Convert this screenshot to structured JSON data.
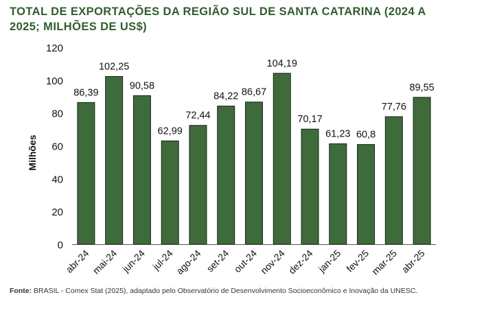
{
  "title_lines": [
    "TOTAL DE EXPORTAÇÕES DA REGIÃO SUL DE SANTA CATARINA (2024 A",
    "2025; MILHÕES DE US$)"
  ],
  "source": {
    "label": "Fonte:",
    "text": " BRASIL - Comex Stat (2025), adaptado pelo Observatório de Desenvolvimento Socioeconômico e Inovação da UNESC."
  },
  "colors": {
    "bar": "#3e6b3a",
    "bar_stroke": "#1e1e1e",
    "title": "#2f5d2e"
  },
  "chart_data": {
    "type": "bar",
    "ylabel": "Milhões",
    "ylim": [
      0,
      120
    ],
    "yticks": [
      0,
      20,
      40,
      60,
      80,
      100,
      120
    ],
    "grid": false,
    "categories": [
      "abr-24",
      "mai-24",
      "jun-24",
      "jul-24",
      "ago-24",
      "set-24",
      "out-24",
      "nov-24",
      "dez-24",
      "jan-25",
      "fev-25",
      "mar-25",
      "abr-25"
    ],
    "values": [
      86.39,
      102.25,
      90.58,
      62.99,
      72.44,
      84.22,
      86.67,
      104.19,
      70.17,
      61.23,
      60.8,
      77.76,
      89.55
    ],
    "value_labels": [
      "86,39",
      "102,25",
      "90,58",
      "62,99",
      "72,44",
      "84,22",
      "86,67",
      "104,19",
      "70,17",
      "61,23",
      "60,8",
      "77,76",
      "89,55"
    ]
  }
}
